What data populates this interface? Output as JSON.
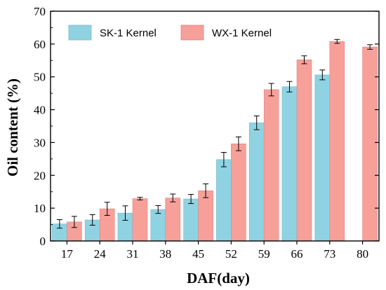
{
  "chart_data": {
    "type": "bar",
    "title": "",
    "xlabel": "DAF(day)",
    "ylabel": "Oil content (%)",
    "ylim": [
      0,
      70
    ],
    "yticks": [
      0,
      10,
      20,
      30,
      40,
      50,
      60,
      70
    ],
    "categories": [
      "17",
      "24",
      "31",
      "38",
      "45",
      "52",
      "59",
      "66",
      "73",
      "80"
    ],
    "legend_position": "top-left",
    "series": [
      {
        "name": "SK-1 Kernel",
        "color": "#8fd3e3",
        "values": [
          5.2,
          6.4,
          8.5,
          9.6,
          12.8,
          24.8,
          36.0,
          47.0,
          50.6,
          null
        ],
        "errors": [
          1.3,
          1.6,
          2.2,
          1.2,
          1.4,
          2.2,
          2.1,
          1.6,
          1.5,
          null
        ]
      },
      {
        "name": "WX-1 Kernel",
        "color": "#f7a09a",
        "values": [
          5.8,
          9.8,
          12.9,
          13.1,
          15.3,
          29.6,
          46.1,
          55.2,
          60.8,
          59.1
        ],
        "errors": [
          1.7,
          2.0,
          0.4,
          1.2,
          2.1,
          2.1,
          1.9,
          1.2,
          0.6,
          0.7
        ]
      }
    ]
  }
}
